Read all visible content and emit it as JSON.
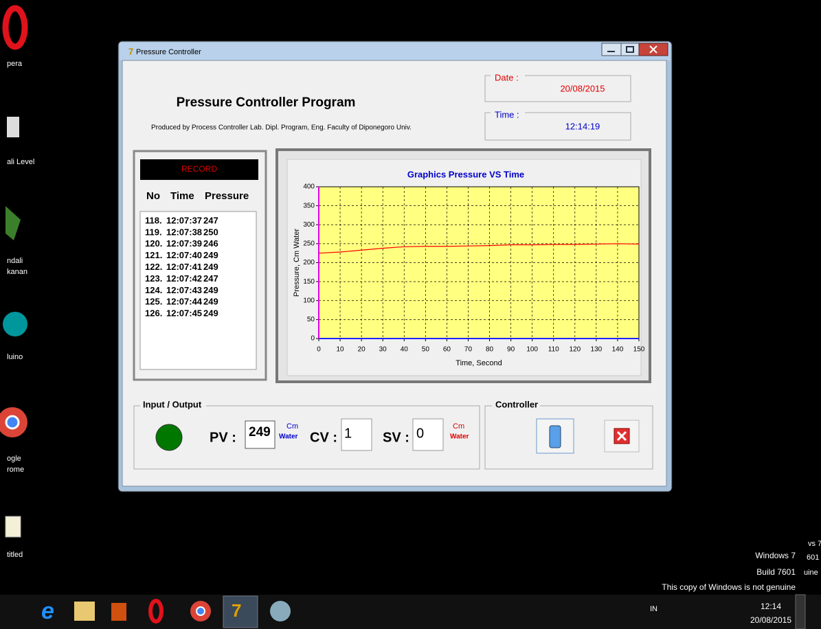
{
  "desktop_icons": [
    "pera",
    "ali Level",
    "ndali",
    "kanan",
    "luino",
    "ogle",
    "rome",
    "titled"
  ],
  "window": {
    "title": "Pressure Controller"
  },
  "header": {
    "title": "Pressure Controller Program",
    "subtitle": "Produced by Process Controller Lab. Dipl. Program, Eng. Faculty of Diponegoro Univ."
  },
  "date": {
    "label": "Date :",
    "value": "20/08/2015"
  },
  "time": {
    "label": "Time :",
    "value": "12:14:19"
  },
  "record": {
    "title": "RECORD",
    "columns": [
      "No",
      "Time",
      "Pressure"
    ],
    "rows": [
      [
        "118.",
        "12:07:37",
        247
      ],
      [
        "119.",
        "12:07:38",
        250
      ],
      [
        "120.",
        "12:07:39",
        246
      ],
      [
        "121.",
        "12:07:40",
        249
      ],
      [
        "122.",
        "12:07:41",
        249
      ],
      [
        "123.",
        "12:07:42",
        247
      ],
      [
        "124.",
        "12:07:43",
        249
      ],
      [
        "125.",
        "12:07:44",
        249
      ],
      [
        "126.",
        "12:07:45",
        249
      ]
    ]
  },
  "chart": {
    "type": "line",
    "title": "Graphics Pressure VS Time",
    "x_label": "Time, Second",
    "y_label": "Pressure, Cm Water",
    "x": [
      0,
      10,
      20,
      30,
      40,
      50,
      60,
      70,
      80,
      90,
      100,
      110,
      120,
      130,
      140,
      150
    ],
    "series": [
      {
        "color": "#ff0000",
        "values": [
          225,
          228,
          233,
          238,
          242,
          243,
          243,
          244,
          245,
          247,
          247,
          248,
          248,
          249,
          250,
          249
        ]
      }
    ],
    "xlim": [
      0,
      150
    ],
    "ylim": [
      0,
      400
    ],
    "xticks": [
      0,
      10,
      20,
      30,
      40,
      50,
      60,
      70,
      80,
      90,
      100,
      110,
      120,
      130,
      140,
      150
    ],
    "yticks": [
      0,
      50,
      100,
      150,
      200,
      250,
      300,
      350,
      400
    ],
    "grid": true,
    "background": "#ffff80"
  },
  "input_output": {
    "label": "Input / Output",
    "pv": {
      "label": "PV :",
      "value": 249,
      "unit": [
        "Cm",
        "Water"
      ]
    },
    "cv": {
      "label": "CV :",
      "value": 1
    },
    "sv": {
      "label": "SV :",
      "value": 0,
      "unit": [
        "Cm",
        "Water"
      ]
    }
  },
  "controller": {
    "label": "Controller"
  },
  "watermark": {
    "fragments": [
      "vs 7",
      "601",
      "uine"
    ],
    "lines": [
      "Windows 7",
      "Build 7601",
      "This copy of Windows is not genuine"
    ]
  },
  "taskbar": {
    "language": "IN",
    "clock": "12:14",
    "date": "20/08/2015"
  }
}
